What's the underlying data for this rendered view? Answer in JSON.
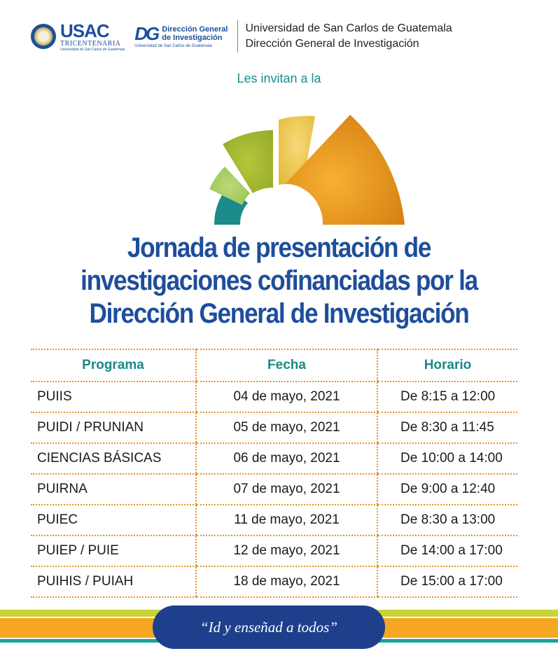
{
  "header": {
    "usac_logo": "USAC",
    "usac_tagline": "TRICENTENARIA",
    "usac_small": "Universidad de San Carlos de Guatemala",
    "dg_mark": "DG",
    "dg_line1": "Dirección General",
    "dg_line2": "de Investigación",
    "dg_small": "Universidad de San Carlos de Guatemala",
    "university": "Universidad de San Carlos de Guatemala",
    "department": "Dirección General de Investigación"
  },
  "invite": "Les invitan a la",
  "title": {
    "line1": "Jornada de presentación de",
    "line2": "investigaciones cofinanciadas por la",
    "line3": "Dirección General de Investigación"
  },
  "table": {
    "headers": [
      "Programa",
      "Fecha",
      "Horario"
    ],
    "rows": [
      [
        "PUIIS",
        "04 de mayo, 2021",
        "De 8:15 a 12:00"
      ],
      [
        "PUIDI / PRUNIAN",
        "05 de mayo, 2021",
        "De 8:30 a 11:45"
      ],
      [
        "CIENCIAS BÁSICAS",
        "06 de mayo, 2021",
        "De 10:00 a 14:00"
      ],
      [
        "PUIRNA",
        "07 de mayo, 2021",
        "De 9:00 a 12:40"
      ],
      [
        "PUIEC",
        "11 de mayo, 2021",
        "De 8:30 a 13:00"
      ],
      [
        "PUIEP / PUIE",
        "12 de mayo, 2021",
        "De 14:00 a 17:00"
      ],
      [
        "PUIHIS / PUIAH",
        "18 de mayo, 2021",
        "De 15:00 a 17:00"
      ]
    ]
  },
  "motto": "“Id y enseñad a todos”",
  "colors": {
    "brand_blue": "#1e4e9b",
    "teal": "#1a8a85",
    "orange": "#f5a623",
    "lime": "#c8d436"
  }
}
